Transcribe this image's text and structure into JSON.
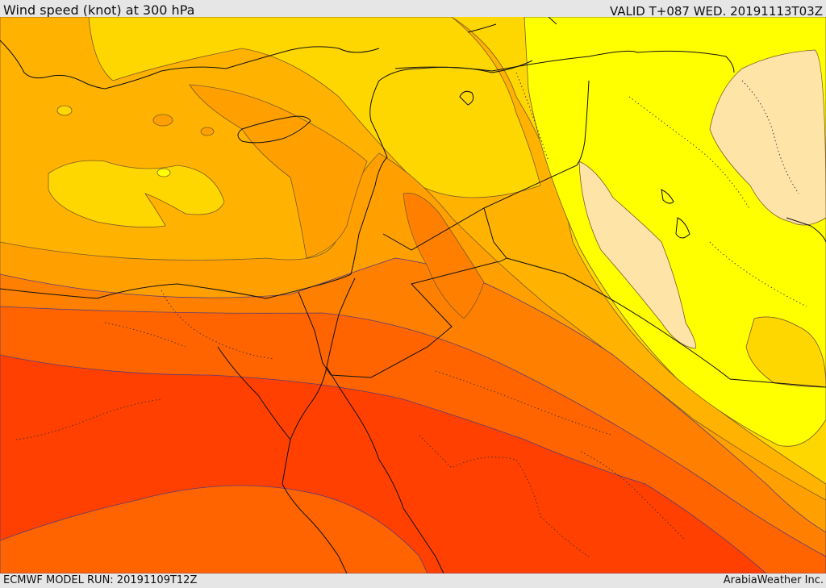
{
  "header": {
    "title": "Wind speed (knot) at 300 hPa",
    "valid": "VALID T+087 WED. 20191113T03Z"
  },
  "footer": {
    "model_run": "ECMWF MODEL RUN: 20191109T12Z",
    "credit": "ArabiaWeather Inc."
  },
  "map": {
    "variable": "wind speed",
    "level": "300 hPa",
    "colors": {
      "calm": "#ffe4a8",
      "light": "#ffff00",
      "moderate": "#ffd700",
      "fresh": "#ffb300",
      "strong": "#ffa000",
      "stronger": "#ff8000",
      "jet_edge": "#ff6400",
      "jet_core": "#ff4000"
    }
  }
}
